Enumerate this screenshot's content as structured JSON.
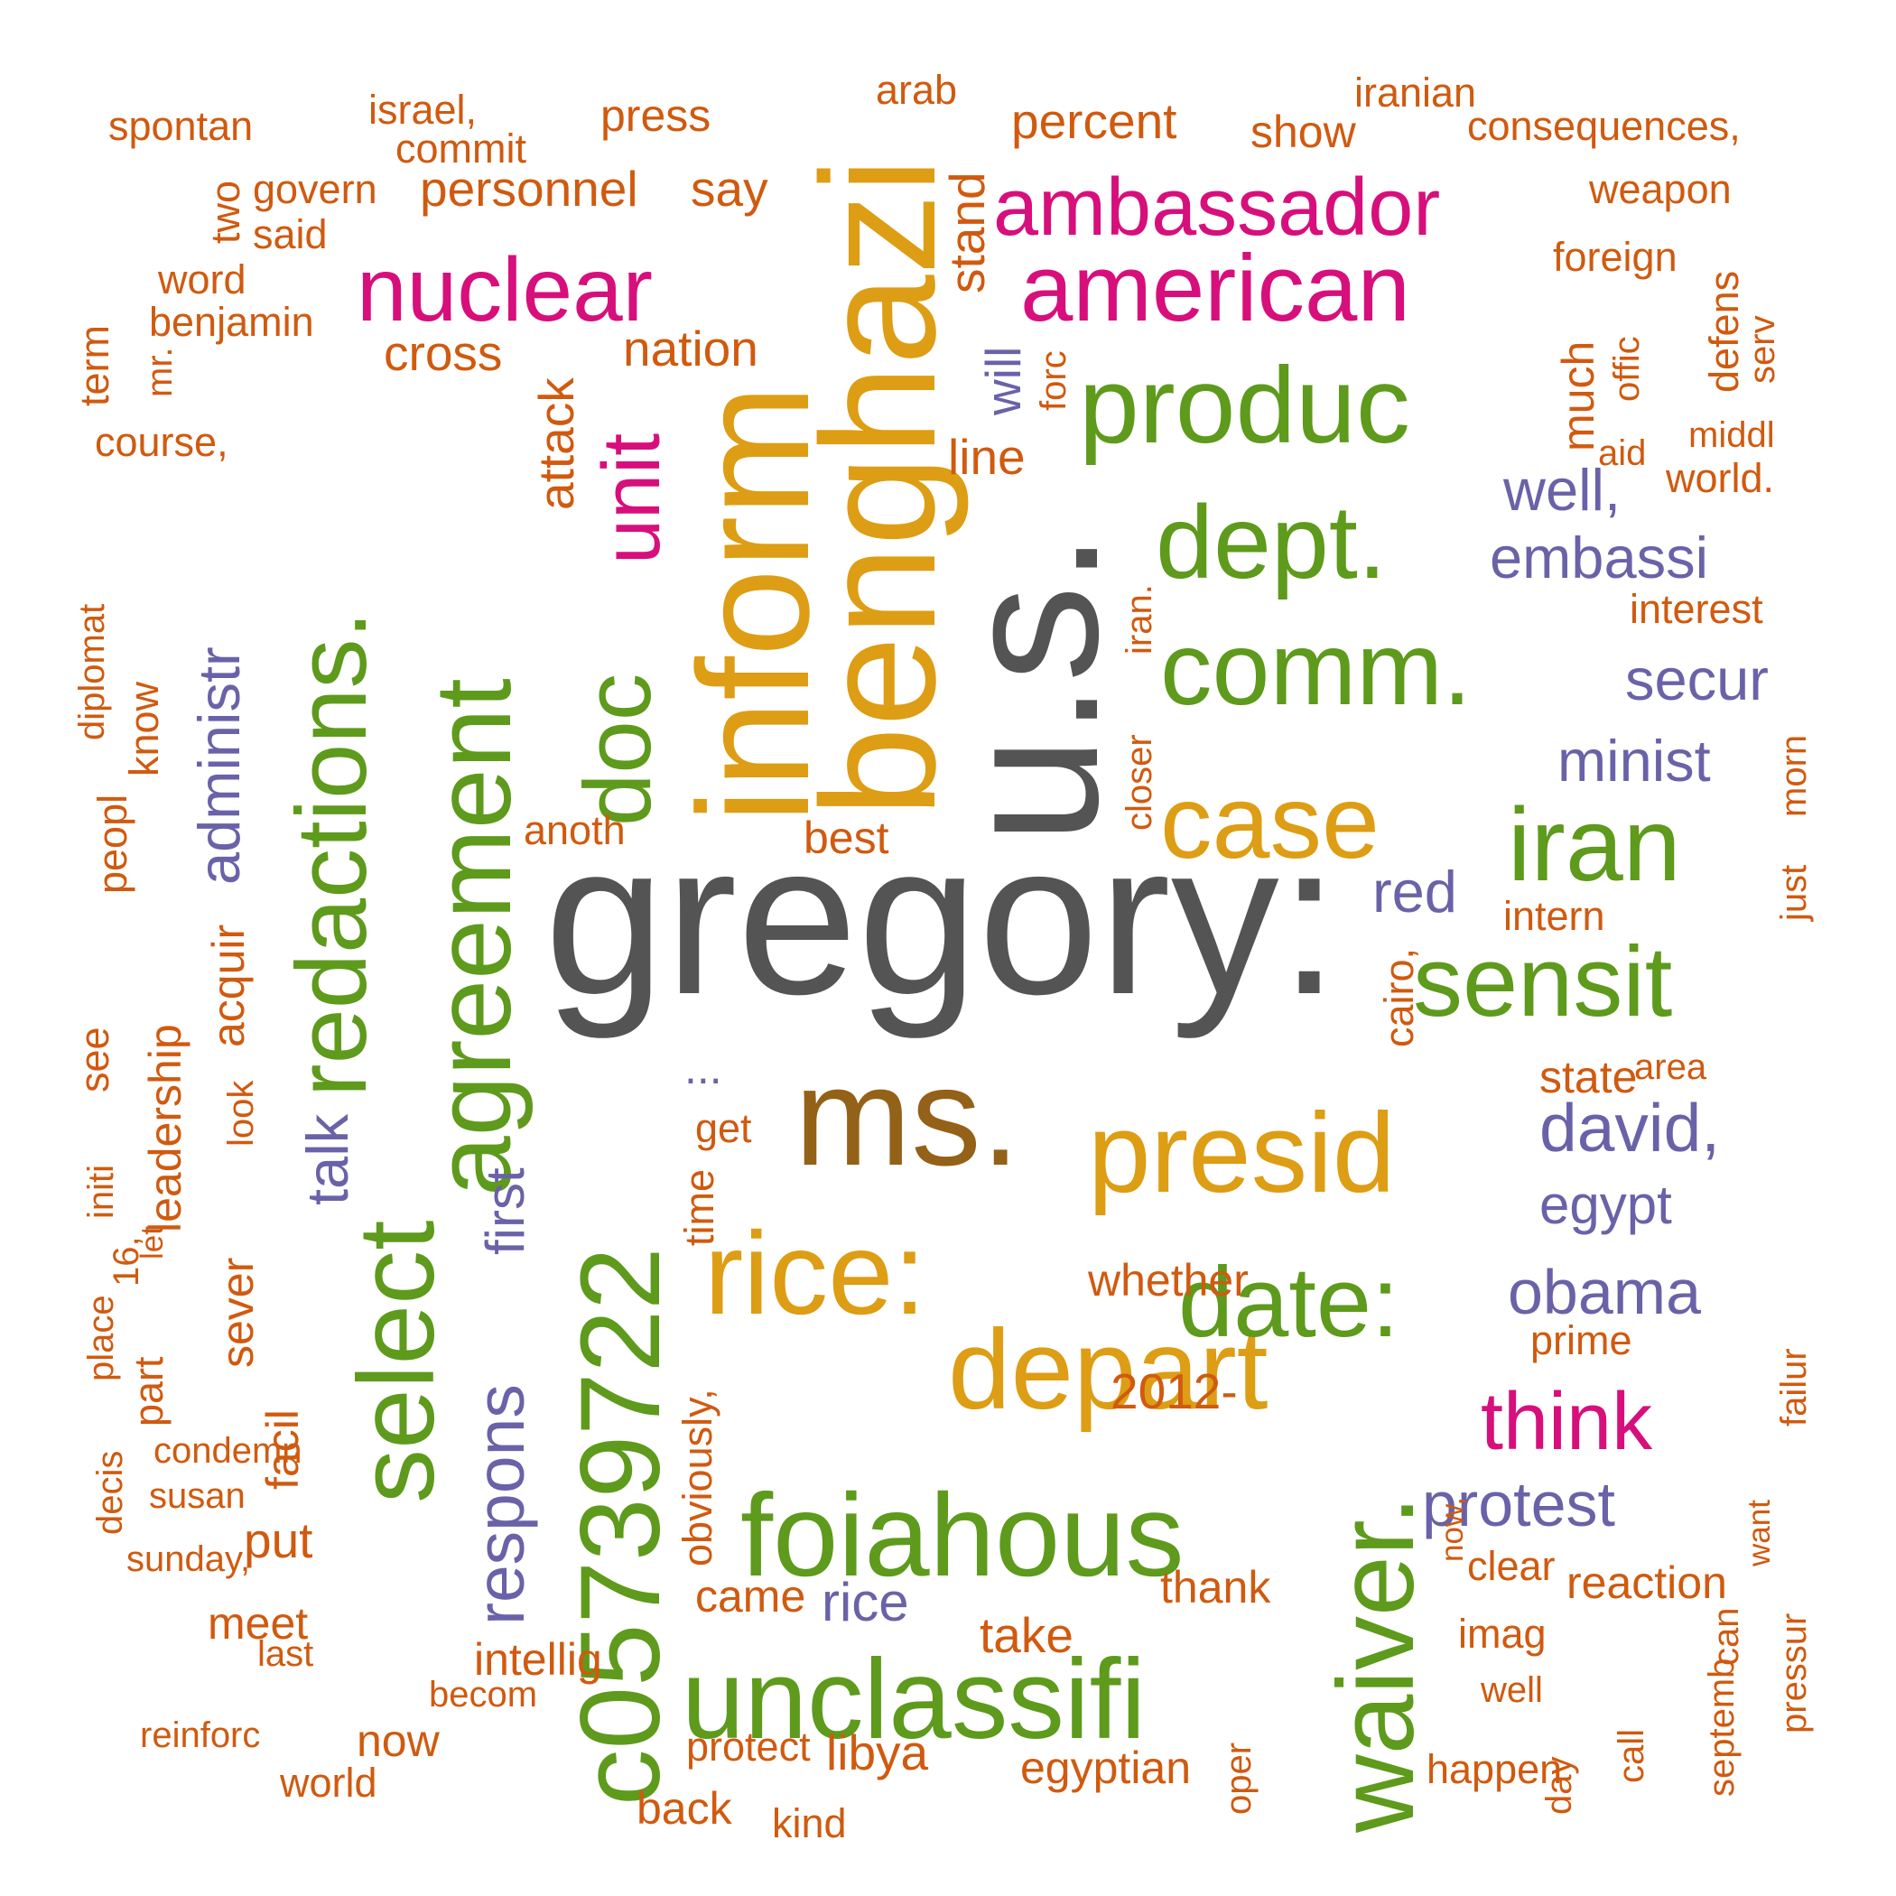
{
  "colors": {
    "gray": "#545454",
    "brown": "#946118",
    "gold": "#DD9D14",
    "green": "#5E9A1C",
    "magenta": "#D70F7C",
    "purple": "#6A62A8",
    "orange": "#D05A0F"
  },
  "words": [
    {
      "text": "gregory:",
      "color": "gray"
    },
    {
      "text": "u.s.",
      "color": "gray"
    },
    {
      "text": "ms.",
      "color": "brown"
    },
    {
      "text": "benghazi",
      "color": "gold"
    },
    {
      "text": "inform",
      "color": "gold"
    },
    {
      "text": "presid",
      "color": "gold"
    },
    {
      "text": "rice:",
      "color": "gold"
    },
    {
      "text": "depart",
      "color": "gold"
    },
    {
      "text": "case",
      "color": "gold"
    },
    {
      "text": "c05739722",
      "color": "green"
    },
    {
      "text": "foiahous",
      "color": "green"
    },
    {
      "text": "unclassifi",
      "color": "green"
    },
    {
      "text": "waiver.",
      "color": "green"
    },
    {
      "text": "select",
      "color": "green"
    },
    {
      "text": "agreement",
      "color": "green"
    },
    {
      "text": "redactions.",
      "color": "green"
    },
    {
      "text": "doc",
      "color": "green"
    },
    {
      "text": "produc",
      "color": "green"
    },
    {
      "text": "dept.",
      "color": "green"
    },
    {
      "text": "comm.",
      "color": "green"
    },
    {
      "text": "iran",
      "color": "green"
    },
    {
      "text": "sensit",
      "color": "green"
    },
    {
      "text": "date:",
      "color": "green"
    },
    {
      "text": "nuclear",
      "color": "magenta"
    },
    {
      "text": "ambassador",
      "color": "magenta"
    },
    {
      "text": "american",
      "color": "magenta"
    },
    {
      "text": "unit",
      "color": "magenta"
    },
    {
      "text": "think",
      "color": "magenta"
    },
    {
      "text": "administr",
      "color": "purple"
    },
    {
      "text": "talk",
      "color": "purple"
    },
    {
      "text": "first",
      "color": "purple"
    },
    {
      "text": "respons",
      "color": "purple"
    },
    {
      "text": "will",
      "color": "purple"
    },
    {
      "text": "well,",
      "color": "purple"
    },
    {
      "text": "embassi",
      "color": "purple"
    },
    {
      "text": "secur",
      "color": "purple"
    },
    {
      "text": "minist",
      "color": "purple"
    },
    {
      "text": "red",
      "color": "purple"
    },
    {
      "text": "david,",
      "color": "purple"
    },
    {
      "text": "egypt",
      "color": "purple"
    },
    {
      "text": "obama",
      "color": "purple"
    },
    {
      "text": "protest",
      "color": "purple"
    },
    {
      "text": "rice",
      "color": "purple"
    },
    {
      "text": "...",
      "color": "purple"
    },
    {
      "text": "spontan",
      "color": "orange"
    },
    {
      "text": "israel,",
      "color": "orange"
    },
    {
      "text": "commit",
      "color": "orange"
    },
    {
      "text": "press",
      "color": "orange"
    },
    {
      "text": "arab",
      "color": "orange"
    },
    {
      "text": "percent",
      "color": "orange"
    },
    {
      "text": "show",
      "color": "orange"
    },
    {
      "text": "iranian",
      "color": "orange"
    },
    {
      "text": "consequences,",
      "color": "orange"
    },
    {
      "text": "two",
      "color": "orange"
    },
    {
      "text": "govern",
      "color": "orange"
    },
    {
      "text": "said",
      "color": "orange"
    },
    {
      "text": "personnel",
      "color": "orange"
    },
    {
      "text": "say",
      "color": "orange"
    },
    {
      "text": "stand",
      "color": "orange"
    },
    {
      "text": "weapon",
      "color": "orange"
    },
    {
      "text": "word",
      "color": "orange"
    },
    {
      "text": "foreign",
      "color": "orange"
    },
    {
      "text": "benjamin",
      "color": "orange"
    },
    {
      "text": "term",
      "color": "orange"
    },
    {
      "text": "mr.",
      "color": "orange"
    },
    {
      "text": "cross",
      "color": "orange"
    },
    {
      "text": "attack",
      "color": "orange"
    },
    {
      "text": "nation",
      "color": "orange"
    },
    {
      "text": "forc",
      "color": "orange"
    },
    {
      "text": "defens",
      "color": "orange"
    },
    {
      "text": "serv",
      "color": "orange"
    },
    {
      "text": "much",
      "color": "orange"
    },
    {
      "text": "offic",
      "color": "orange"
    },
    {
      "text": "course,",
      "color": "orange"
    },
    {
      "text": "line",
      "color": "orange"
    },
    {
      "text": "aid",
      "color": "orange"
    },
    {
      "text": "middl",
      "color": "orange"
    },
    {
      "text": "world.",
      "color": "orange"
    },
    {
      "text": "interest",
      "color": "orange"
    },
    {
      "text": "diplomat",
      "color": "orange"
    },
    {
      "text": "know",
      "color": "orange"
    },
    {
      "text": "iran.",
      "color": "orange"
    },
    {
      "text": "closer",
      "color": "orange"
    },
    {
      "text": "peopl",
      "color": "orange"
    },
    {
      "text": "anoth",
      "color": "orange"
    },
    {
      "text": "best",
      "color": "orange"
    },
    {
      "text": "morn",
      "color": "orange"
    },
    {
      "text": "just",
      "color": "orange"
    },
    {
      "text": "intern",
      "color": "orange"
    },
    {
      "text": "leadership",
      "color": "orange"
    },
    {
      "text": "acquir",
      "color": "orange"
    },
    {
      "text": "cairo,",
      "color": "orange"
    },
    {
      "text": "see",
      "color": "orange"
    },
    {
      "text": "state",
      "color": "orange"
    },
    {
      "text": "area",
      "color": "orange"
    },
    {
      "text": "look",
      "color": "orange"
    },
    {
      "text": "get",
      "color": "orange"
    },
    {
      "text": "initi",
      "color": "orange"
    },
    {
      "text": "time",
      "color": "orange"
    },
    {
      "text": "sever",
      "color": "orange"
    },
    {
      "text": "16,",
      "color": "orange"
    },
    {
      "text": "let",
      "color": "orange"
    },
    {
      "text": "whether",
      "color": "orange"
    },
    {
      "text": "failur",
      "color": "orange"
    },
    {
      "text": "place",
      "color": "orange"
    },
    {
      "text": "part",
      "color": "orange"
    },
    {
      "text": "prime",
      "color": "orange"
    },
    {
      "text": "facil",
      "color": "orange"
    },
    {
      "text": "2012-",
      "color": "orange"
    },
    {
      "text": "condemn",
      "color": "orange"
    },
    {
      "text": "want",
      "color": "orange"
    },
    {
      "text": "now,",
      "color": "orange"
    },
    {
      "text": "decis",
      "color": "orange"
    },
    {
      "text": "susan",
      "color": "orange"
    },
    {
      "text": "put",
      "color": "orange"
    },
    {
      "text": "obviously,",
      "color": "orange"
    },
    {
      "text": "pressur",
      "color": "orange"
    },
    {
      "text": "sunday,",
      "color": "orange"
    },
    {
      "text": "can",
      "color": "orange"
    },
    {
      "text": "clear",
      "color": "orange"
    },
    {
      "text": "came",
      "color": "orange"
    },
    {
      "text": "thank",
      "color": "orange"
    },
    {
      "text": "reaction",
      "color": "orange"
    },
    {
      "text": "meet",
      "color": "orange"
    },
    {
      "text": "take",
      "color": "orange"
    },
    {
      "text": "imag",
      "color": "orange"
    },
    {
      "text": "last",
      "color": "orange"
    },
    {
      "text": "intellig",
      "color": "orange"
    },
    {
      "text": "call",
      "color": "orange"
    },
    {
      "text": "becom",
      "color": "orange"
    },
    {
      "text": "well",
      "color": "orange"
    },
    {
      "text": "septemb",
      "color": "orange"
    },
    {
      "text": "reinforc",
      "color": "orange"
    },
    {
      "text": "now",
      "color": "orange"
    },
    {
      "text": "protect",
      "color": "orange"
    },
    {
      "text": "libya",
      "color": "orange"
    },
    {
      "text": "day",
      "color": "orange"
    },
    {
      "text": "oper",
      "color": "orange"
    },
    {
      "text": "happen",
      "color": "orange"
    },
    {
      "text": "egyptian",
      "color": "orange"
    },
    {
      "text": "world",
      "color": "orange"
    },
    {
      "text": "back",
      "color": "orange"
    },
    {
      "text": "kind",
      "color": "orange"
    }
  ]
}
